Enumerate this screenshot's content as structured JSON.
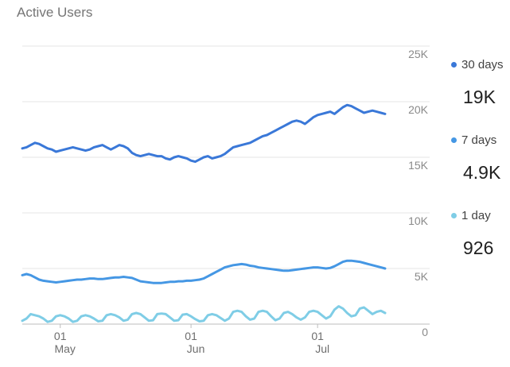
{
  "chart_data": {
    "type": "line",
    "title": "Active Users",
    "y_ticks": [
      "25K",
      "20K",
      "15K",
      "10K",
      "5K",
      "0"
    ],
    "y_tick_values": [
      25000,
      20000,
      15000,
      10000,
      5000,
      0
    ],
    "ylim": [
      0,
      25000
    ],
    "x_tick_labels": [
      {
        "day": "01",
        "month": "May",
        "index": 9
      },
      {
        "day": "01",
        "month": "Jun",
        "index": 40
      },
      {
        "day": "01",
        "month": "Jul",
        "index": 70
      }
    ],
    "grid": true,
    "legend_position": "right",
    "series": [
      {
        "name": "30 days",
        "summary": "19K",
        "color": "#3a78d8",
        "values": [
          15800,
          15900,
          16100,
          16300,
          16200,
          16000,
          15800,
          15700,
          15500,
          15600,
          15700,
          15800,
          15900,
          15800,
          15700,
          15600,
          15700,
          15900,
          16000,
          16100,
          15900,
          15700,
          15900,
          16100,
          16000,
          15800,
          15400,
          15200,
          15100,
          15200,
          15300,
          15200,
          15100,
          15100,
          14900,
          14800,
          15000,
          15100,
          15000,
          14900,
          14700,
          14600,
          14800,
          15000,
          15100,
          14900,
          15000,
          15100,
          15300,
          15600,
          15900,
          16000,
          16100,
          16200,
          16300,
          16500,
          16700,
          16900,
          17000,
          17200,
          17400,
          17600,
          17800,
          18000,
          18200,
          18300,
          18200,
          18000,
          18300,
          18600,
          18800,
          18900,
          19000,
          19100,
          18900,
          19200,
          19500,
          19700,
          19600,
          19400,
          19200,
          19000,
          19100,
          19200,
          19100,
          19000,
          18900
        ]
      },
      {
        "name": "7 days",
        "summary": "4.9K",
        "color": "#4597e4",
        "values": [
          4400,
          4500,
          4400,
          4200,
          4000,
          3900,
          3850,
          3800,
          3750,
          3800,
          3850,
          3900,
          3950,
          4000,
          4000,
          4050,
          4100,
          4100,
          4050,
          4050,
          4100,
          4150,
          4200,
          4200,
          4250,
          4200,
          4150,
          4000,
          3850,
          3800,
          3750,
          3700,
          3700,
          3700,
          3750,
          3800,
          3800,
          3850,
          3850,
          3900,
          3900,
          3950,
          4000,
          4100,
          4300,
          4500,
          4700,
          4900,
          5100,
          5200,
          5300,
          5350,
          5400,
          5350,
          5250,
          5200,
          5100,
          5050,
          5000,
          4950,
          4900,
          4850,
          4800,
          4800,
          4850,
          4900,
          4950,
          5000,
          5050,
          5100,
          5100,
          5050,
          5000,
          5050,
          5200,
          5400,
          5600,
          5700,
          5700,
          5650,
          5600,
          5500,
          5400,
          5300,
          5200,
          5100,
          5000
        ]
      },
      {
        "name": "1 day",
        "summary": "926",
        "color": "#7fcde6",
        "values": [
          300,
          500,
          900,
          800,
          700,
          500,
          200,
          300,
          700,
          800,
          700,
          500,
          200,
          300,
          700,
          800,
          700,
          500,
          250,
          300,
          800,
          900,
          800,
          600,
          300,
          400,
          900,
          1000,
          900,
          600,
          300,
          350,
          900,
          950,
          900,
          600,
          300,
          350,
          850,
          900,
          700,
          450,
          250,
          300,
          800,
          900,
          800,
          550,
          300,
          500,
          1100,
          1200,
          1100,
          700,
          400,
          500,
          1100,
          1200,
          1100,
          700,
          350,
          500,
          1000,
          1100,
          900,
          600,
          400,
          600,
          1100,
          1200,
          1100,
          800,
          500,
          700,
          1300,
          1600,
          1400,
          1000,
          700,
          800,
          1400,
          1500,
          1200,
          900,
          1100,
          1200,
          1000
        ]
      }
    ]
  }
}
